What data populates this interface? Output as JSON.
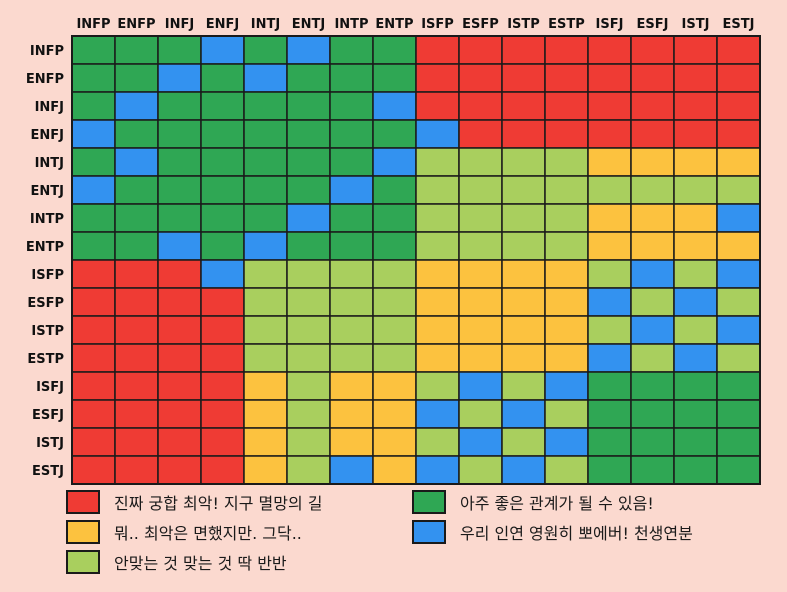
{
  "chart_data": {
    "type": "heatmap",
    "title": "",
    "x_labels": [
      "INFP",
      "ENFP",
      "INFJ",
      "ENFJ",
      "INTJ",
      "ENTJ",
      "INTP",
      "ENTP",
      "ISFP",
      "ESFP",
      "ISTP",
      "ESTP",
      "ISFJ",
      "ESFJ",
      "ISTJ",
      "ESTJ"
    ],
    "y_labels": [
      "INFP",
      "ENFP",
      "INFJ",
      "ENFJ",
      "INTJ",
      "ENTJ",
      "INTP",
      "ENTP",
      "ISFP",
      "ESFP",
      "ISTP",
      "ESTP",
      "ISFJ",
      "ESFJ",
      "ISTJ",
      "ESTJ"
    ],
    "levels": {
      "R": {
        "label": "진짜 궁합 최악! 지구 멸망의 길",
        "color": "#ef3b34"
      },
      "O": {
        "label": "뭐.. 최악은 면했지만. 그닥..",
        "color": "#fcc23f"
      },
      "L": {
        "label": "안맞는 것 맞는 것 딱 반반",
        "color": "#a9cf5e"
      },
      "G": {
        "label": "아주 좋은 관계가 될 수 있음!",
        "color": "#2fa754"
      },
      "B": {
        "label": "우리 인연 영원히 뽀에버! 천생연분",
        "color": "#3392f0"
      }
    },
    "legend_order": [
      "R",
      "G",
      "O",
      "B",
      "L"
    ],
    "matrix": [
      [
        "G",
        "G",
        "G",
        "B",
        "G",
        "B",
        "G",
        "G",
        "R",
        "R",
        "R",
        "R",
        "R",
        "R",
        "R",
        "R"
      ],
      [
        "G",
        "G",
        "B",
        "G",
        "B",
        "G",
        "G",
        "G",
        "R",
        "R",
        "R",
        "R",
        "R",
        "R",
        "R",
        "R"
      ],
      [
        "G",
        "B",
        "G",
        "G",
        "G",
        "G",
        "G",
        "B",
        "R",
        "R",
        "R",
        "R",
        "R",
        "R",
        "R",
        "R"
      ],
      [
        "B",
        "G",
        "G",
        "G",
        "G",
        "G",
        "G",
        "G",
        "B",
        "R",
        "R",
        "R",
        "R",
        "R",
        "R",
        "R"
      ],
      [
        "G",
        "B",
        "G",
        "G",
        "G",
        "G",
        "G",
        "B",
        "L",
        "L",
        "L",
        "L",
        "O",
        "O",
        "O",
        "O"
      ],
      [
        "B",
        "G",
        "G",
        "G",
        "G",
        "G",
        "B",
        "G",
        "L",
        "L",
        "L",
        "L",
        "L",
        "L",
        "L",
        "L"
      ],
      [
        "G",
        "G",
        "G",
        "G",
        "G",
        "B",
        "G",
        "G",
        "L",
        "L",
        "L",
        "L",
        "O",
        "O",
        "O",
        "B"
      ],
      [
        "G",
        "G",
        "B",
        "G",
        "B",
        "G",
        "G",
        "G",
        "L",
        "L",
        "L",
        "L",
        "O",
        "O",
        "O",
        "O"
      ],
      [
        "R",
        "R",
        "R",
        "B",
        "L",
        "L",
        "L",
        "L",
        "O",
        "O",
        "O",
        "O",
        "L",
        "B",
        "L",
        "B"
      ],
      [
        "R",
        "R",
        "R",
        "R",
        "L",
        "L",
        "L",
        "L",
        "O",
        "O",
        "O",
        "O",
        "B",
        "L",
        "B",
        "L"
      ],
      [
        "R",
        "R",
        "R",
        "R",
        "L",
        "L",
        "L",
        "L",
        "O",
        "O",
        "O",
        "O",
        "L",
        "B",
        "L",
        "B"
      ],
      [
        "R",
        "R",
        "R",
        "R",
        "L",
        "L",
        "L",
        "L",
        "O",
        "O",
        "O",
        "O",
        "B",
        "L",
        "B",
        "L"
      ],
      [
        "R",
        "R",
        "R",
        "R",
        "O",
        "L",
        "O",
        "O",
        "L",
        "B",
        "L",
        "B",
        "G",
        "G",
        "G",
        "G"
      ],
      [
        "R",
        "R",
        "R",
        "R",
        "O",
        "L",
        "O",
        "O",
        "B",
        "L",
        "B",
        "L",
        "G",
        "G",
        "G",
        "G"
      ],
      [
        "R",
        "R",
        "R",
        "R",
        "O",
        "L",
        "O",
        "O",
        "L",
        "B",
        "L",
        "B",
        "G",
        "G",
        "G",
        "G"
      ],
      [
        "R",
        "R",
        "R",
        "R",
        "O",
        "L",
        "B",
        "O",
        "B",
        "L",
        "B",
        "L",
        "G",
        "G",
        "G",
        "G"
      ]
    ]
  }
}
